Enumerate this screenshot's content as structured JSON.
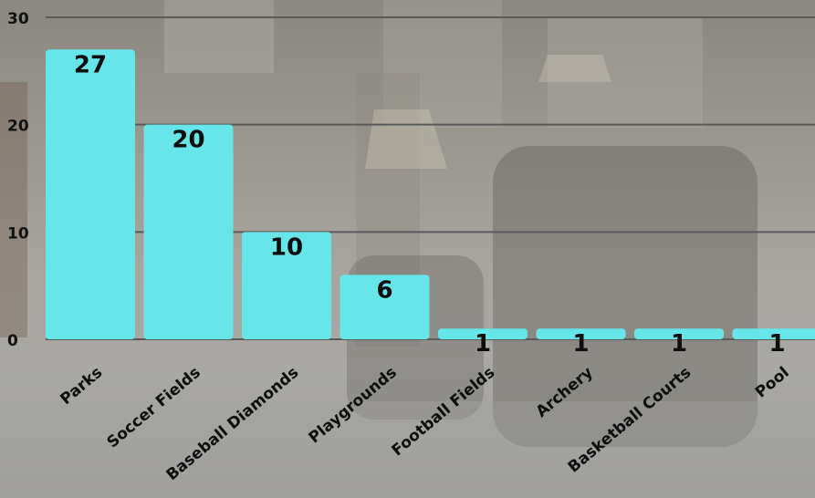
{
  "chart_data": {
    "type": "bar",
    "categories": [
      "Parks",
      "Soccer Fields",
      "Baseball Diamonds",
      "Playgrounds",
      "Football Fields",
      "Archery",
      "Basketball Courts",
      "Pool"
    ],
    "values": [
      27,
      20,
      10,
      6,
      1,
      1,
      1,
      1
    ],
    "y_ticks": [
      "0",
      "10",
      "20",
      "30"
    ],
    "ylim": [
      0,
      30
    ],
    "grid": true,
    "bar_color": "#66e6e8",
    "gridline_color": "#5a5a5a",
    "text_color": "#111111"
  }
}
